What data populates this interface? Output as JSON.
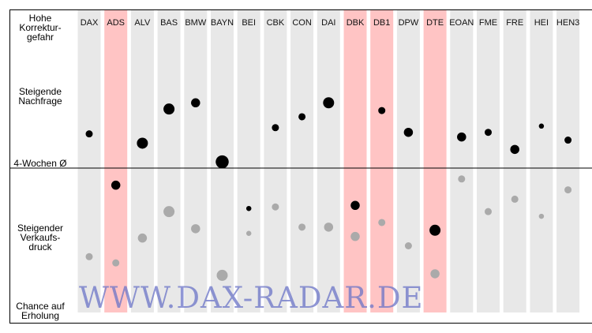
{
  "chart_data": {
    "type": "scatter",
    "title": "",
    "categories": [
      "DAX",
      "ADS",
      "ALV",
      "BAS",
      "BMW",
      "BAYN",
      "BEI",
      "CBK",
      "CON",
      "DAI",
      "DBK",
      "DB1",
      "DPW",
      "DTE",
      "EOAN",
      "FME",
      "FRE",
      "HEI",
      "HEN3"
    ],
    "highlighted": [
      "ADS",
      "DBK",
      "DB1",
      "DTE"
    ],
    "y_labels": {
      "top": "Hohe Korrektur-gefahr",
      "upper": "Steigende Nachfrage",
      "baseline": "4-Wochen Ø",
      "lower": "Steigender Verkaufs-druck",
      "bottom": "Chance auf Erholung"
    },
    "ylim": [
      -100,
      100
    ],
    "series": [
      {
        "color": "#000000",
        "y": [
          22,
          -11,
          16,
          38,
          42,
          4,
          -26,
          26,
          33,
          42,
          -24,
          37,
          23,
          -40,
          20,
          23,
          12,
          27,
          18
        ],
        "size": [
          2,
          3,
          4,
          4,
          3,
          5,
          1,
          2,
          2,
          4,
          3,
          2,
          3,
          4,
          3,
          2,
          3,
          1,
          2
        ]
      },
      {
        "color": "#aaaaaa",
        "y": [
          -57,
          -61,
          -45,
          -28,
          -39,
          -69,
          -42,
          -25,
          -38,
          -38,
          -44,
          -35,
          -50,
          -68,
          -7,
          -28,
          -20,
          -31,
          -14
        ],
        "size": [
          2,
          2,
          3,
          4,
          3,
          4,
          1,
          2,
          2,
          3,
          3,
          2,
          2,
          3,
          2,
          2,
          2,
          1,
          2
        ]
      }
    ],
    "grid": false,
    "legend": "none",
    "colors": {
      "column": "#e8e8e8",
      "highlight": "#ffc4c4"
    }
  },
  "watermark": "WWW.DAX-RADAR.DE"
}
